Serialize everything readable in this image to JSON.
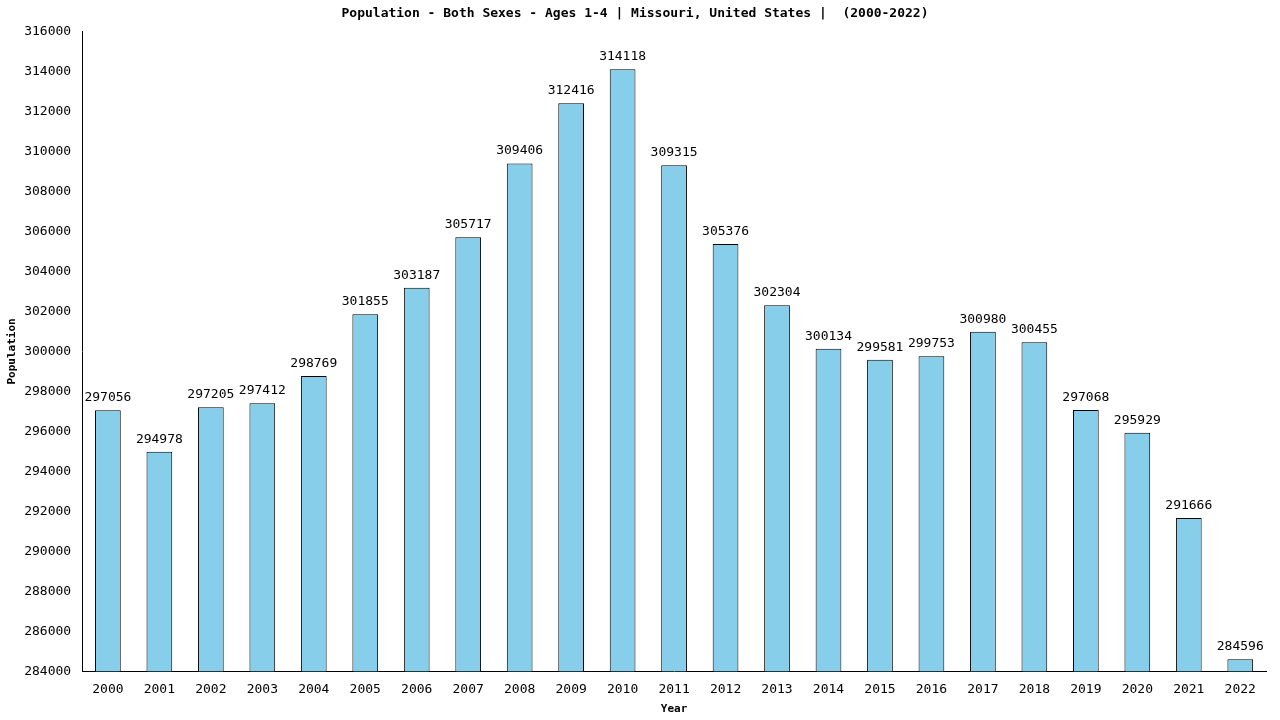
{
  "chart_data": {
    "type": "bar",
    "title": "Population - Both Sexes - Ages 1-4 | Missouri, United States |  (2000-2022)",
    "x_label": "Year",
    "y_label": "Population",
    "categories": [
      "2000",
      "2001",
      "2002",
      "2003",
      "2004",
      "2005",
      "2006",
      "2007",
      "2008",
      "2009",
      "2010",
      "2011",
      "2012",
      "2013",
      "2014",
      "2015",
      "2016",
      "2017",
      "2018",
      "2019",
      "2020",
      "2021",
      "2022"
    ],
    "values": [
      297056,
      294978,
      297205,
      297412,
      298769,
      301855,
      303187,
      305717,
      309406,
      312416,
      314118,
      309315,
      305376,
      302304,
      300134,
      299581,
      299753,
      300980,
      300455,
      297068,
      295929,
      291666,
      284596
    ],
    "color": "#87ceeb",
    "ylim": [
      284000,
      316000
    ],
    "yticks": [
      284000,
      286000,
      288000,
      290000,
      292000,
      294000,
      296000,
      298000,
      300000,
      302000,
      304000,
      306000,
      308000,
      310000,
      312000,
      314000,
      316000
    ],
    "grid": false,
    "data_labels": true
  }
}
